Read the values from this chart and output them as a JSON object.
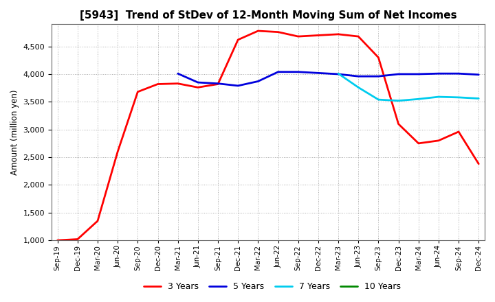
{
  "title": "[5943]  Trend of StDev of 12-Month Moving Sum of Net Incomes",
  "ylabel": "Amount (million yen)",
  "x_labels": [
    "Sep-19",
    "Dec-19",
    "Mar-20",
    "Jun-20",
    "Sep-20",
    "Dec-20",
    "Mar-21",
    "Jun-21",
    "Sep-21",
    "Dec-21",
    "Mar-22",
    "Jun-22",
    "Sep-22",
    "Dec-22",
    "Mar-23",
    "Jun-23",
    "Sep-23",
    "Dec-23",
    "Mar-24",
    "Jun-24",
    "Sep-24",
    "Dec-24"
  ],
  "series": {
    "3 Years": {
      "color": "#FF0000",
      "data": [
        1000,
        1020,
        1350,
        2600,
        3680,
        3820,
        3830,
        3760,
        3820,
        4620,
        4780,
        4760,
        4680,
        4700,
        4720,
        4680,
        4300,
        3100,
        2750,
        2800,
        2960,
        2380
      ]
    },
    "5 Years": {
      "color": "#0000DD",
      "data": [
        null,
        null,
        null,
        null,
        null,
        null,
        4010,
        3850,
        3830,
        3790,
        3870,
        4040,
        4040,
        4020,
        4000,
        3960,
        3960,
        4000,
        4000,
        4010,
        4010,
        3990
      ]
    },
    "7 Years": {
      "color": "#00CCEE",
      "data": [
        null,
        null,
        null,
        null,
        null,
        null,
        null,
        null,
        null,
        null,
        null,
        null,
        null,
        null,
        4010,
        3760,
        3540,
        3520,
        3550,
        3590,
        3580,
        3560
      ]
    },
    "10 Years": {
      "color": "#008800",
      "data": [
        null,
        null,
        null,
        null,
        null,
        null,
        null,
        null,
        null,
        null,
        null,
        null,
        null,
        null,
        null,
        null,
        null,
        null,
        null,
        null,
        null,
        null
      ]
    }
  },
  "ylim": [
    1000,
    4900
  ],
  "yticks": [
    1000,
    1500,
    2000,
    2500,
    3000,
    3500,
    4000,
    4500
  ],
  "background_color": "#FFFFFF",
  "plot_bg_color": "#FFFFFF",
  "grid_color": "#AAAAAA",
  "title_fontsize": 11,
  "legend_entries": [
    "3 Years",
    "5 Years",
    "7 Years",
    "10 Years"
  ]
}
